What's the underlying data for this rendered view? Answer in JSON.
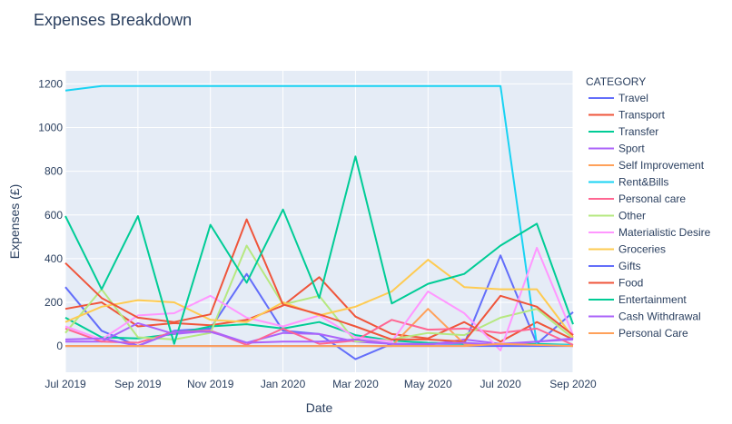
{
  "chart_data": {
    "type": "line",
    "title": "Expenses Breakdown",
    "xlabel": "Date",
    "ylabel": "Expenses (£)",
    "legend_title": "CATEGORY",
    "legend_position": "right",
    "x": [
      "2019-07",
      "2019-08",
      "2019-09",
      "2019-10",
      "2019-11",
      "2019-12",
      "2020-01",
      "2020-02",
      "2020-03",
      "2020-04",
      "2020-05",
      "2020-06",
      "2020-07",
      "2020-08",
      "2020-09"
    ],
    "xlim": [
      "2019-07",
      "2020-09"
    ],
    "xticks": [
      {
        "at": "2019-07",
        "label": "Jul 2019"
      },
      {
        "at": "2019-09",
        "label": "Sep 2019"
      },
      {
        "at": "2019-11",
        "label": "Nov 2019"
      },
      {
        "at": "2020-01",
        "label": "Jan 2020"
      },
      {
        "at": "2020-03",
        "label": "Mar 2020"
      },
      {
        "at": "2020-05",
        "label": "May 2020"
      },
      {
        "at": "2020-07",
        "label": "Jul 2020"
      },
      {
        "at": "2020-09",
        "label": "Sep 2020"
      }
    ],
    "ylim": [
      -120,
      1260
    ],
    "yticks": [
      0,
      200,
      400,
      600,
      800,
      1000,
      1200
    ],
    "series": [
      {
        "name": "Travel",
        "color": "#636efa",
        "values": [
          270,
          70,
          0,
          70,
          80,
          330,
          70,
          55,
          -60,
          10,
          10,
          10,
          415,
          10,
          155
        ]
      },
      {
        "name": "Transport",
        "color": "#ef553b",
        "values": [
          170,
          200,
          90,
          105,
          95,
          120,
          185,
          315,
          135,
          55,
          35,
          110,
          20,
          110,
          30
        ]
      },
      {
        "name": "Transfer",
        "color": "#00cc96",
        "values": [
          130,
          40,
          35,
          55,
          90,
          100,
          80,
          110,
          50,
          25,
          15,
          10,
          5,
          10,
          5
        ]
      },
      {
        "name": "Sport",
        "color": "#ab63fa",
        "values": [
          20,
          20,
          105,
          55,
          70,
          15,
          60,
          55,
          20,
          10,
          5,
          30,
          10,
          20,
          30
        ]
      },
      {
        "name": "Self Improvement",
        "color": "#ffa15a",
        "values": [
          0,
          0,
          0,
          0,
          0,
          0,
          0,
          0,
          0,
          0,
          170,
          10,
          0,
          5,
          0
        ]
      },
      {
        "name": "Rent&Bills",
        "color": "#19d3f3",
        "values": [
          1170,
          1190,
          1190,
          1190,
          1190,
          1190,
          1190,
          1190,
          1190,
          1190,
          1190,
          1190,
          1190,
          5,
          5
        ]
      },
      {
        "name": "Personal care",
        "color": "#ff6692",
        "values": [
          80,
          20,
          15,
          65,
          70,
          5,
          80,
          10,
          25,
          120,
          75,
          80,
          60,
          80,
          5
        ]
      },
      {
        "name": "Other",
        "color": "#b6e880",
        "values": [
          60,
          260,
          40,
          30,
          60,
          460,
          190,
          230,
          20,
          30,
          60,
          50,
          130,
          170,
          35
        ]
      },
      {
        "name": "Materialistic Desire",
        "color": "#ff97ff",
        "values": [
          90,
          30,
          140,
          150,
          230,
          130,
          90,
          140,
          40,
          20,
          250,
          150,
          -20,
          450,
          50
        ]
      },
      {
        "name": "Groceries",
        "color": "#fecb52",
        "values": [
          110,
          180,
          210,
          200,
          120,
          110,
          200,
          140,
          180,
          250,
          395,
          270,
          260,
          260,
          40
        ]
      },
      {
        "name": "Gifts",
        "color": "#636efa",
        "values": [
          0,
          0,
          0,
          0,
          0,
          0,
          0,
          0,
          0,
          0,
          0,
          0,
          0,
          0,
          0
        ]
      },
      {
        "name": "Food",
        "color": "#ef553b",
        "values": [
          380,
          220,
          130,
          110,
          145,
          580,
          190,
          145,
          90,
          30,
          30,
          20,
          230,
          180,
          50
        ]
      },
      {
        "name": "Entertainment",
        "color": "#00cc96",
        "values": [
          595,
          260,
          595,
          10,
          555,
          290,
          625,
          220,
          868,
          195,
          285,
          330,
          460,
          560,
          100
        ]
      },
      {
        "name": "Cash Withdrawal",
        "color": "#ab63fa",
        "values": [
          30,
          35,
          0,
          65,
          65,
          15,
          20,
          20,
          30,
          10,
          10,
          15,
          5,
          20,
          35
        ]
      },
      {
        "name": "Personal Care",
        "color": "#ffa15a",
        "values": [
          0,
          0,
          0,
          0,
          0,
          0,
          0,
          0,
          0,
          0,
          0,
          0,
          10,
          5,
          0
        ]
      }
    ]
  }
}
